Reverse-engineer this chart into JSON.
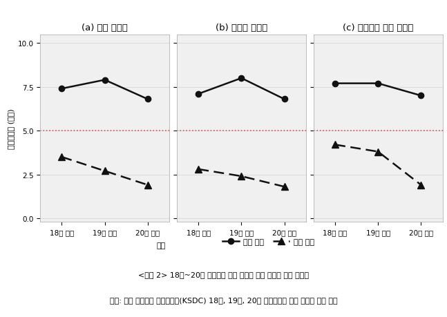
{
  "panels": [
    {
      "title": "(a) 양당 지지자",
      "solid_line": [
        7.4,
        7.9,
        6.8
      ],
      "dashed_line": [
        3.5,
        2.7,
        1.9
      ]
    },
    {
      "title": "(b) 민주당 지지자",
      "solid_line": [
        7.1,
        8.0,
        6.8
      ],
      "dashed_line": [
        2.8,
        2.4,
        1.8
      ]
    },
    {
      "title": "(c) 보수계열 정당 지지자",
      "solid_line": [
        7.7,
        7.7,
        7.0
      ],
      "dashed_line": [
        4.2,
        3.8,
        1.9
      ]
    }
  ],
  "x_labels": [
    "18대 대선",
    "19대 대선",
    "20대 대선"
  ],
  "y_label": "정당호오도 (평균)",
  "y_ticks": [
    0.0,
    2.5,
    5.0,
    7.5,
    10.0
  ],
  "y_lim": [
    -0.2,
    10.5
  ],
  "hline_y": 5.0,
  "hline_color": "#d9534f",
  "legend_label_party": "정당",
  "legend_label_solid": "지지 정당",
  "legend_label_dashed": "상대 정당",
  "caption_line1": "<그림 2> 18대~20대 대선에서 지지 정당과 반대 정당에 대한 호오도",
  "caption_line2": "출처: 한국 사회과학 데이터센터(KSDC) 18대, 19대, 20대 대통령선거 관련 유권자 의식 조사",
  "bg_color": "#f0f0f0",
  "line_color": "#111111",
  "grid_color": "#d8d8d8",
  "title_fontsize": 9.5,
  "label_fontsize": 8,
  "tick_fontsize": 7.5,
  "caption_fontsize": 8
}
